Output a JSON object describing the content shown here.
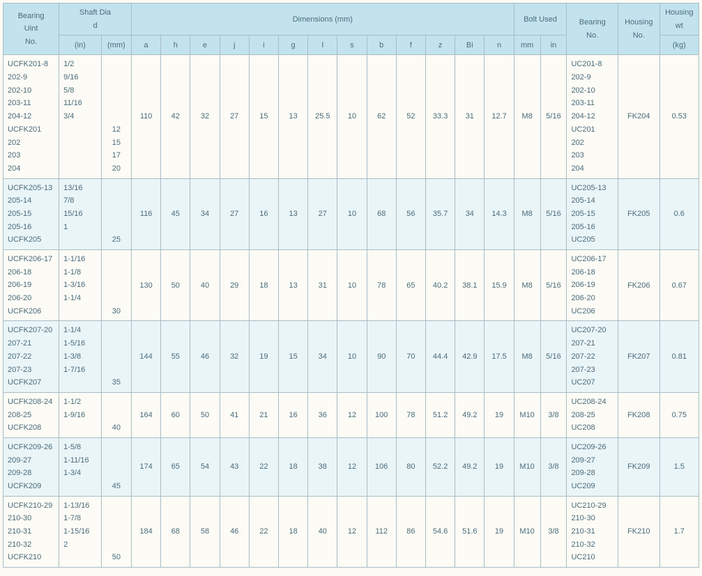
{
  "headers": {
    "bearing_unit": "Bearing\nUint\nNo.",
    "shaft_dia": "Shaft  Dia\nd",
    "in": "(in)",
    "mm": "(mm)",
    "dimensions": "Dimensions      (mm)",
    "dims": [
      "a",
      "h",
      "e",
      "j",
      "i",
      "g",
      "l",
      "s",
      "b",
      "f",
      "z",
      "Bi",
      "n"
    ],
    "bolt_used": "Bolt Used",
    "bolt_sub": [
      "mm",
      "in"
    ],
    "bearing_no": "Bearing\nNo.",
    "housing_no": "Housing\nNo.",
    "housing_wt": "Housing\nwt",
    "kg": "(kg)"
  },
  "rows": [
    {
      "alt": false,
      "bearing_unit": [
        "UCFK201-8",
        "202-9",
        "202-10",
        "203-11",
        "204-12",
        "UCFK201",
        "202",
        "203",
        "204"
      ],
      "shaft_in": [
        "1/2",
        "9/16",
        "5/8",
        "11/16",
        "3/4",
        "",
        "",
        "",
        ""
      ],
      "shaft_mm": [
        "",
        "",
        "",
        "",
        "",
        "12",
        "15",
        "17",
        "20"
      ],
      "dims": [
        "110",
        "42",
        "32",
        "27",
        "15",
        "13",
        "25.5",
        "10",
        "62",
        "52",
        "33.3",
        "31",
        "12.7"
      ],
      "bolt": [
        "M8",
        "5/16"
      ],
      "bearing_no": [
        "UC201-8",
        "202-9",
        "202-10",
        "203-11",
        "204-12",
        "UC201",
        "202",
        "203",
        "204"
      ],
      "housing_no": "FK204",
      "wt": "0.53"
    },
    {
      "alt": true,
      "bearing_unit": [
        "UCFK205-13",
        "205-14",
        "205-15",
        "205-16",
        "UCFK205"
      ],
      "shaft_in": [
        "13/16",
        "7/8",
        "15/16",
        "1",
        ""
      ],
      "shaft_mm": [
        "",
        "",
        "",
        "",
        "25"
      ],
      "dims": [
        "116",
        "45",
        "34",
        "27",
        "16",
        "13",
        "27",
        "10",
        "68",
        "56",
        "35.7",
        "34",
        "14.3"
      ],
      "bolt": [
        "M8",
        "5/16"
      ],
      "bearing_no": [
        "UC205-13",
        "205-14",
        "205-15",
        "205-16",
        "UC205"
      ],
      "housing_no": "FK205",
      "wt": "0.6"
    },
    {
      "alt": false,
      "bearing_unit": [
        "UCFK206-17",
        "206-18",
        "206-19",
        "206-20",
        "UCFK206"
      ],
      "shaft_in": [
        "1-1/16",
        "1-1/8",
        "1-3/16",
        "1-1/4",
        ""
      ],
      "shaft_mm": [
        "",
        "",
        "",
        "",
        "30"
      ],
      "dims": [
        "130",
        "50",
        "40",
        "29",
        "18",
        "13",
        "31",
        "10",
        "78",
        "65",
        "40.2",
        "38.1",
        "15.9"
      ],
      "bolt": [
        "M8",
        "5/16"
      ],
      "bearing_no": [
        "UC206-17",
        "206-18",
        "206-19",
        "206-20",
        "UC206"
      ],
      "housing_no": "FK206",
      "wt": "0.67"
    },
    {
      "alt": true,
      "bearing_unit": [
        "UCFK207-20",
        "207-21",
        "207-22",
        "207-23",
        "UCFK207"
      ],
      "shaft_in": [
        "1-1/4",
        "1-5/16",
        "1-3/8",
        "1-7/16",
        ""
      ],
      "shaft_mm": [
        "",
        "",
        "",
        "",
        "35"
      ],
      "dims": [
        "144",
        "55",
        "46",
        "32",
        "19",
        "15",
        "34",
        "10",
        "90",
        "70",
        "44.4",
        "42.9",
        "17.5"
      ],
      "bolt": [
        "M8",
        "5/16"
      ],
      "bearing_no": [
        "UC207-20",
        "207-21",
        "207-22",
        "207-23",
        "UC207"
      ],
      "housing_no": "FK207",
      "wt": "0.81"
    },
    {
      "alt": false,
      "bearing_unit": [
        "UCFK208-24",
        "208-25",
        "UCFK208"
      ],
      "shaft_in": [
        "1-1/2",
        "1-9/16",
        ""
      ],
      "shaft_mm": [
        "",
        "",
        "40"
      ],
      "dims": [
        "164",
        "60",
        "50",
        "41",
        "21",
        "16",
        "36",
        "12",
        "100",
        "78",
        "51.2",
        "49.2",
        "19"
      ],
      "bolt": [
        "M10",
        "3/8"
      ],
      "bearing_no": [
        "UC208-24",
        "208-25",
        "UC208"
      ],
      "housing_no": "FK208",
      "wt": "0.75"
    },
    {
      "alt": true,
      "bearing_unit": [
        "UCFK209-26",
        "209-27",
        "209-28",
        "UCFK209"
      ],
      "shaft_in": [
        "1-5/8",
        "1-11/16",
        "1-3/4",
        ""
      ],
      "shaft_mm": [
        "",
        "",
        "",
        "45"
      ],
      "dims": [
        "174",
        "65",
        "54",
        "43",
        "22",
        "18",
        "38",
        "12",
        "106",
        "80",
        "52.2",
        "49.2",
        "19"
      ],
      "bolt": [
        "M10",
        "3/8"
      ],
      "bearing_no": [
        "UC209-26",
        "209-27",
        "209-28",
        "UC209"
      ],
      "housing_no": "FK209",
      "wt": "1.5"
    },
    {
      "alt": false,
      "bearing_unit": [
        "UCFK210-29",
        "210-30",
        "210-31",
        "210-32",
        "UCFK210"
      ],
      "shaft_in": [
        "1-13/16",
        "1-7/8",
        "1-15/16",
        "2",
        ""
      ],
      "shaft_mm": [
        "",
        "",
        "",
        "",
        "50"
      ],
      "dims": [
        "184",
        "68",
        "58",
        "46",
        "22",
        "18",
        "40",
        "12",
        "112",
        "86",
        "54.6",
        "51.6",
        "19"
      ],
      "bolt": [
        "M10",
        "3/8"
      ],
      "bearing_no": [
        "UC210-29",
        "210-30",
        "210-31",
        "210-32",
        "UC210"
      ],
      "housing_no": "FK210",
      "wt": "1.7"
    }
  ]
}
